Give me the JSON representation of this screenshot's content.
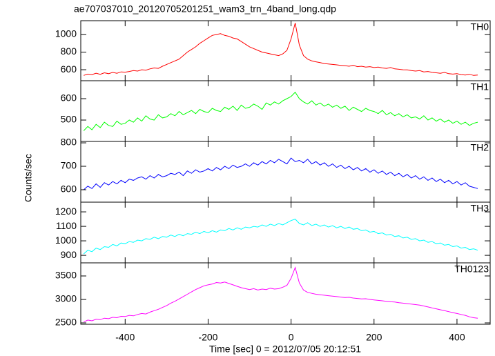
{
  "chart_data": {
    "type": "line",
    "title": "ae707037010_20120705201251_wam3_trn_4band_long.qdp",
    "xlabel": "Time [sec] 0 = 2012/07/05 20:12:51",
    "ylabel": "Counts/sec",
    "xlim": [
      -507,
      480
    ],
    "xticks": [
      -400,
      -200,
      0,
      200,
      400
    ],
    "x": [
      -500,
      -490,
      -480,
      -470,
      -460,
      -450,
      -440,
      -430,
      -420,
      -410,
      -400,
      -390,
      -380,
      -370,
      -360,
      -350,
      -340,
      -330,
      -320,
      -310,
      -300,
      -290,
      -280,
      -270,
      -260,
      -250,
      -240,
      -230,
      -220,
      -210,
      -200,
      -190,
      -180,
      -170,
      -160,
      -150,
      -140,
      -130,
      -120,
      -110,
      -100,
      -90,
      -80,
      -70,
      -60,
      -50,
      -40,
      -30,
      -20,
      -10,
      0,
      10,
      20,
      30,
      40,
      50,
      60,
      70,
      80,
      90,
      100,
      110,
      120,
      130,
      140,
      150,
      160,
      170,
      180,
      190,
      200,
      210,
      220,
      230,
      240,
      250,
      260,
      270,
      280,
      290,
      300,
      310,
      320,
      330,
      340,
      350,
      360,
      370,
      380,
      390,
      400,
      410,
      420,
      430,
      440,
      450
    ],
    "series": [
      {
        "name": "TH0",
        "color": "#ff0000",
        "ylim": [
          475,
          1157
        ],
        "yticks": [
          600,
          800,
          1000
        ],
        "values": [
          535,
          550,
          545,
          560,
          548,
          565,
          555,
          570,
          560,
          575,
          572,
          580,
          590,
          585,
          600,
          595,
          610,
          620,
          615,
          640,
          660,
          680,
          700,
          720,
          760,
          800,
          830,
          860,
          900,
          930,
          960,
          990,
          1000,
          1010,
          990,
          980,
          960,
          950,
          920,
          890,
          860,
          840,
          820,
          800,
          790,
          780,
          770,
          760,
          780,
          820,
          950,
          1130,
          880,
          760,
          720,
          700,
          690,
          680,
          670,
          665,
          660,
          655,
          650,
          645,
          640,
          650,
          635,
          640,
          630,
          635,
          625,
          630,
          620,
          615,
          625,
          610,
          605,
          600,
          598,
          590,
          585,
          590,
          575,
          580,
          570,
          565,
          560,
          570,
          555,
          550,
          555,
          545,
          540,
          548,
          535,
          540
        ]
      },
      {
        "name": "TH1",
        "color": "#00ff00",
        "ylim": [
          400,
          684
        ],
        "yticks": [
          500,
          600
        ],
        "values": [
          450,
          470,
          455,
          480,
          465,
          490,
          475,
          470,
          495,
          480,
          485,
          500,
          490,
          510,
          495,
          520,
          505,
          500,
          525,
          510,
          515,
          530,
          520,
          540,
          525,
          535,
          545,
          530,
          550,
          540,
          535,
          555,
          545,
          540,
          560,
          550,
          565,
          545,
          570,
          555,
          560,
          575,
          565,
          550,
          580,
          570,
          585,
          575,
          590,
          600,
          610,
          630,
          600,
          585,
          575,
          590,
          570,
          580,
          565,
          575,
          560,
          570,
          555,
          565,
          545,
          560,
          550,
          540,
          555,
          545,
          540,
          530,
          545,
          525,
          535,
          520,
          530,
          515,
          525,
          510,
          515,
          505,
          520,
          500,
          510,
          495,
          505,
          490,
          500,
          485,
          495,
          480,
          490,
          475,
          485,
          490
        ]
      },
      {
        "name": "TH2",
        "color": "#0000ff",
        "ylim": [
          547,
          806
        ],
        "yticks": [
          600,
          700,
          800
        ],
        "values": [
          600,
          615,
          605,
          625,
          610,
          630,
          620,
          635,
          625,
          640,
          630,
          645,
          640,
          650,
          655,
          645,
          660,
          650,
          665,
          655,
          660,
          670,
          665,
          675,
          660,
          680,
          670,
          685,
          675,
          680,
          690,
          680,
          695,
          685,
          700,
          690,
          705,
          695,
          700,
          710,
          700,
          715,
          705,
          720,
          710,
          725,
          715,
          730,
          720,
          710,
          735,
          720,
          725,
          715,
          730,
          710,
          720,
          705,
          715,
          700,
          710,
          695,
          705,
          690,
          700,
          685,
          695,
          680,
          690,
          675,
          685,
          670,
          680,
          665,
          675,
          660,
          670,
          655,
          665,
          650,
          660,
          645,
          655,
          640,
          650,
          635,
          645,
          630,
          640,
          625,
          635,
          620,
          630,
          615,
          610,
          605
        ]
      },
      {
        "name": "TH3",
        "color": "#00ffff",
        "ylim": [
          848,
          1267
        ],
        "yticks": [
          900,
          1000,
          1100,
          1200
        ],
        "values": [
          910,
          935,
          925,
          950,
          940,
          960,
          955,
          975,
          965,
          985,
          980,
          995,
          990,
          1005,
          1000,
          1015,
          1010,
          1025,
          1015,
          1030,
          1025,
          1040,
          1030,
          1045,
          1035,
          1050,
          1045,
          1060,
          1050,
          1065,
          1055,
          1070,
          1060,
          1075,
          1070,
          1085,
          1075,
          1090,
          1080,
          1095,
          1090,
          1100,
          1095,
          1110,
          1100,
          1115,
          1105,
          1120,
          1110,
          1125,
          1140,
          1150,
          1120,
          1110,
          1125,
          1105,
          1115,
          1100,
          1110,
          1095,
          1105,
          1090,
          1100,
          1085,
          1095,
          1080,
          1085,
          1070,
          1075,
          1060,
          1065,
          1050,
          1055,
          1040,
          1045,
          1030,
          1035,
          1020,
          1025,
          1010,
          1015,
          1000,
          1005,
          990,
          995,
          980,
          985,
          970,
          975,
          960,
          965,
          950,
          955,
          940,
          945,
          935
        ]
      },
      {
        "name": "TH0123",
        "color": "#ff00ff",
        "ylim": [
          2471,
          3779
        ],
        "yticks": [
          2500,
          3000,
          3500
        ],
        "values": [
          2520,
          2560,
          2545,
          2580,
          2570,
          2600,
          2590,
          2620,
          2610,
          2640,
          2635,
          2660,
          2650,
          2680,
          2700,
          2690,
          2730,
          2760,
          2790,
          2830,
          2870,
          2920,
          2960,
          3010,
          3060,
          3110,
          3160,
          3210,
          3250,
          3290,
          3310,
          3330,
          3360,
          3350,
          3370,
          3340,
          3310,
          3280,
          3250,
          3230,
          3210,
          3230,
          3200,
          3220,
          3210,
          3240,
          3220,
          3230,
          3260,
          3300,
          3450,
          3680,
          3350,
          3200,
          3150,
          3130,
          3110,
          3100,
          3090,
          3080,
          3070,
          3060,
          3050,
          3040,
          3045,
          3030,
          3020,
          3010,
          3015,
          3000,
          2990,
          2980,
          2970,
          2960,
          2950,
          2945,
          2930,
          2920,
          2910,
          2900,
          2890,
          2880,
          2860,
          2840,
          2820,
          2800,
          2780,
          2760,
          2740,
          2720,
          2700,
          2680,
          2660,
          2630,
          2610,
          2600
        ]
      }
    ]
  }
}
